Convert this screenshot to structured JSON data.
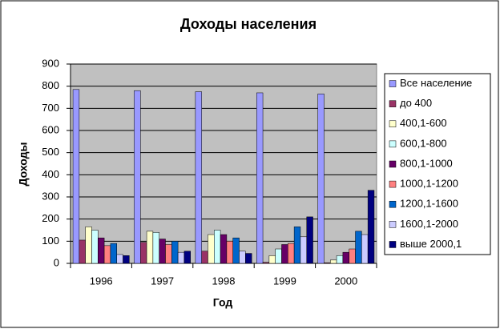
{
  "chart_data": {
    "type": "bar",
    "title": "Доходы населения",
    "x_label": "Год",
    "y_label": "Доходы",
    "categories": [
      "1996",
      "1997",
      "1998",
      "1999",
      "2000"
    ],
    "series": [
      {
        "name": "Все население",
        "color": "#9999ff",
        "values": [
          785,
          780,
          775,
          770,
          765
        ]
      },
      {
        "name": "до 400",
        "color": "#993366",
        "values": [
          105,
          95,
          55,
          5,
          3
        ]
      },
      {
        "name": "400,1-600",
        "color": "#ffffcc",
        "values": [
          165,
          145,
          130,
          35,
          15
        ]
      },
      {
        "name": "600,1-800",
        "color": "#ccffff",
        "values": [
          150,
          140,
          150,
          65,
          35
        ]
      },
      {
        "name": "800,1-1000",
        "color": "#660066",
        "values": [
          115,
          110,
          130,
          85,
          50
        ]
      },
      {
        "name": "1000,1-1200",
        "color": "#ff8080",
        "values": [
          80,
          85,
          100,
          90,
          65
        ]
      },
      {
        "name": "1200,1-1600",
        "color": "#0066cc",
        "values": [
          90,
          100,
          115,
          165,
          145
        ]
      },
      {
        "name": "1600,1-2000",
        "color": "#ccccff",
        "values": [
          40,
          50,
          55,
          120,
          130
        ]
      },
      {
        "name": "выше 2000,1",
        "color": "#000080",
        "values": [
          35,
          55,
          45,
          210,
          330
        ]
      }
    ],
    "ylim": [
      0,
      900
    ],
    "yticks": [
      0,
      100,
      200,
      300,
      400,
      500,
      600,
      700,
      800,
      900
    ],
    "grid": true,
    "legend": "right",
    "plot_background": "#c0c0c0"
  }
}
